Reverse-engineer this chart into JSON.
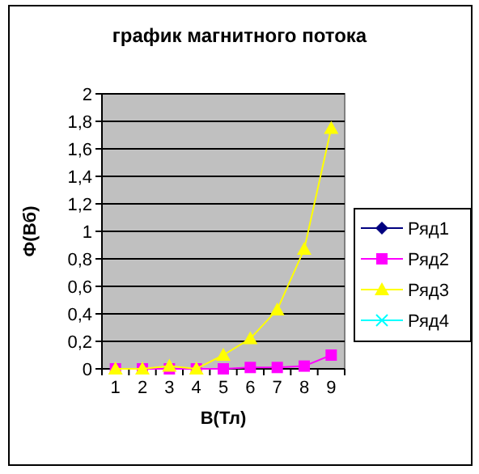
{
  "chart_data": {
    "type": "line",
    "title": "график магнитного потока",
    "xlabel": "B(Тл)",
    "ylabel": "Ф(Вб)",
    "categories": [
      "1",
      "2",
      "3",
      "4",
      "5",
      "6",
      "7",
      "8",
      "9"
    ],
    "series": [
      {
        "name": "Ряд1",
        "color": "#000080",
        "marker": "diamond",
        "values": [
          null,
          null,
          null,
          null,
          null,
          null,
          null,
          null,
          null
        ]
      },
      {
        "name": "Ряд2",
        "color": "#ff00ff",
        "marker": "square",
        "values": [
          0,
          0,
          0,
          0,
          0,
          0.01,
          0.01,
          0.02,
          0.1
        ]
      },
      {
        "name": "Ряд3",
        "color": "#ffff00",
        "marker": "triangle",
        "values": [
          0,
          0,
          0.02,
          0,
          0.1,
          0.22,
          0.43,
          0.87,
          1.75
        ]
      },
      {
        "name": "Ряд4",
        "color": "#00ffff",
        "marker": "cross",
        "values": [
          null,
          null,
          null,
          null,
          null,
          null,
          null,
          null,
          null
        ]
      }
    ],
    "ylim": [
      0,
      2
    ],
    "yticks": [
      0,
      {
        "value": 0.2,
        "label": "0,2"
      },
      {
        "value": 0.4,
        "label": "0,4"
      },
      {
        "value": 0.6,
        "label": "0,6"
      },
      {
        "value": 0.8,
        "label": "0,8"
      },
      1,
      {
        "value": 1.2,
        "label": "1,2"
      },
      {
        "value": 1.4,
        "label": "1,4"
      },
      {
        "value": 1.6,
        "label": "1,6"
      },
      {
        "value": 1.8,
        "label": "1,8"
      },
      2
    ],
    "grid": "y",
    "legend": "right"
  }
}
